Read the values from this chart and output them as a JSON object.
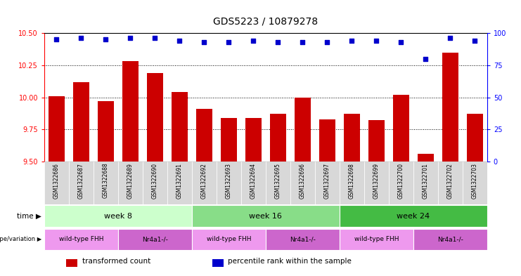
{
  "title": "GDS5223 / 10879278",
  "samples": [
    "GSM1322686",
    "GSM1322687",
    "GSM1322688",
    "GSM1322689",
    "GSM1322690",
    "GSM1322691",
    "GSM1322692",
    "GSM1322693",
    "GSM1322694",
    "GSM1322695",
    "GSM1322696",
    "GSM1322697",
    "GSM1322698",
    "GSM1322699",
    "GSM1322700",
    "GSM1322701",
    "GSM1322702",
    "GSM1322703"
  ],
  "transformed_count": [
    10.01,
    10.12,
    9.97,
    10.28,
    10.19,
    10.04,
    9.91,
    9.84,
    9.84,
    9.87,
    10.0,
    9.83,
    9.87,
    9.82,
    10.02,
    9.56,
    10.35,
    9.87
  ],
  "percentile_rank": [
    95,
    96,
    95,
    96,
    96,
    94,
    93,
    93,
    94,
    93,
    93,
    93,
    94,
    94,
    93,
    80,
    96,
    94
  ],
  "bar_color": "#cc0000",
  "dot_color": "#0000cc",
  "ylim_left": [
    9.5,
    10.5
  ],
  "ylim_right": [
    0,
    100
  ],
  "yticks_left": [
    9.5,
    9.75,
    10.0,
    10.25,
    10.5
  ],
  "yticks_right": [
    0,
    25,
    50,
    75,
    100
  ],
  "grid_values": [
    9.75,
    10.0,
    10.25
  ],
  "time_groups": [
    {
      "label": "week 8",
      "start": 0,
      "end": 5,
      "color": "#ccffcc"
    },
    {
      "label": "week 16",
      "start": 6,
      "end": 11,
      "color": "#88dd88"
    },
    {
      "label": "week 24",
      "start": 12,
      "end": 17,
      "color": "#44bb44"
    }
  ],
  "genotype_groups": [
    {
      "label": "wild-type FHH",
      "start": 0,
      "end": 2,
      "color": "#ee99ee"
    },
    {
      "label": "Nr4a1-/-",
      "start": 3,
      "end": 5,
      "color": "#cc66cc"
    },
    {
      "label": "wild-type FHH",
      "start": 6,
      "end": 8,
      "color": "#ee99ee"
    },
    {
      "label": "Nr4a1-/-",
      "start": 9,
      "end": 11,
      "color": "#cc66cc"
    },
    {
      "label": "wild-type FHH",
      "start": 12,
      "end": 14,
      "color": "#ee99ee"
    },
    {
      "label": "Nr4a1-/-",
      "start": 15,
      "end": 17,
      "color": "#cc66cc"
    }
  ],
  "legend_items": [
    {
      "label": "transformed count",
      "color": "#cc0000"
    },
    {
      "label": "percentile rank within the sample",
      "color": "#0000cc"
    }
  ],
  "bar_width": 0.65,
  "background_color": "#ffffff",
  "fig_width": 7.41,
  "fig_height": 3.93,
  "dpi": 100
}
